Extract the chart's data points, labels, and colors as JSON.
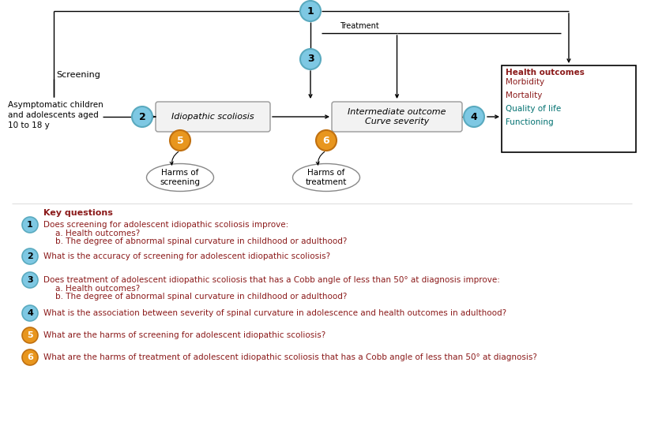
{
  "bg_color": "#ffffff",
  "blue_circle_color": "#7ec8e3",
  "blue_circle_edge": "#5aaabf",
  "orange_circle_color": "#e8961e",
  "orange_circle_edge": "#c07010",
  "box_fill": "#f0f0f0",
  "box_edge": "#999999",
  "health_box_fill": "#ffffff",
  "health_box_edge": "#000000",
  "dark_red_text": "#8b1a1a",
  "teal_text": "#007070",
  "arrow_color": "#000000",
  "kq_title": "Key questions",
  "kq1_main": "Does screening for adolescent idiopathic scoliosis improve:",
  "kq1a": "a. Health outcomes?",
  "kq1b": "b. The degree of abnormal spinal curvature in childhood or adulthood?",
  "kq2_main": "What is the accuracy of screening for adolescent idiopathic scoliosis?",
  "kq3_main": "Does treatment of adolescent idiopathic scoliosis that has a Cobb angle of less than 50° at diagnosis improve:",
  "kq3a": "a. Health outcomes?",
  "kq3b": "b. The degree of abnormal spinal curvature in childhood or adulthood?",
  "kq4_main": "What is the association between severity of spinal curvature in adolescence and health outcomes in adulthood?",
  "kq5_main": "What are the harms of screening for adolescent idiopathic scoliosis?",
  "kq6_main": "What are the harms of treatment of adolescent idiopathic scoliosis that has a Cobb angle of less than 50° at diagnosis?",
  "node_screening_label": "Screening",
  "node_patient_label": "Asymptomatic children\nand adolescents aged\n10 to 18 y",
  "node_idiopathic_label": "Idiopathic scoliosis",
  "node_intermediate_label": "Intermediate outcome\nCurve severity",
  "node_treatment_label": "Treatment",
  "node_harms_screening_label": "Harms of\nscreening",
  "node_harms_treatment_label": "Harms of\ntreatment",
  "health_outcomes_title": "Health outcomes",
  "health_outcomes_items": [
    "Morbidity",
    "Mortality",
    "Quality of life",
    "Functioning"
  ],
  "health_colors": [
    "#8b1a1a",
    "#8b1a1a",
    "#007070",
    "#007070"
  ]
}
